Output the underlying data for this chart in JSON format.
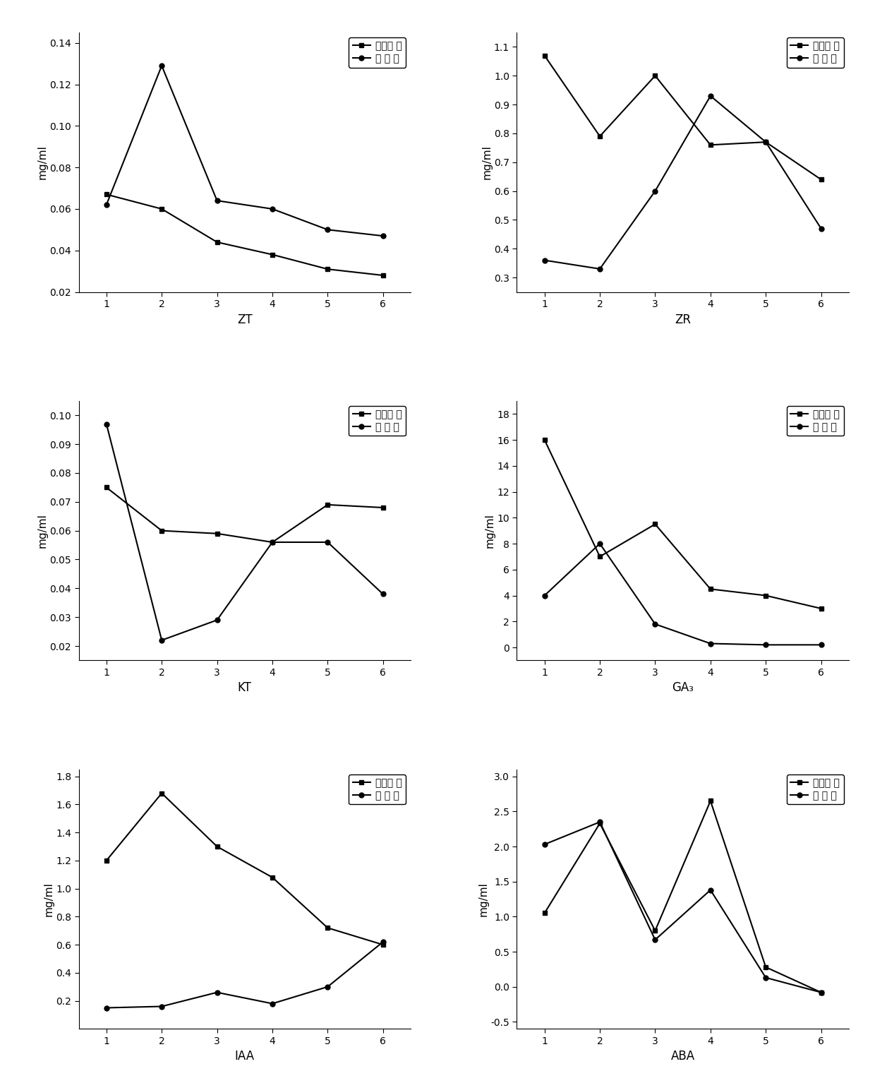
{
  "x": [
    1,
    2,
    3,
    4,
    5,
    6
  ],
  "ZT": {
    "shandong": [
      0.067,
      0.06,
      0.044,
      0.038,
      0.031,
      0.028
    ],
    "chuan": [
      0.062,
      0.129,
      0.064,
      0.06,
      0.05,
      0.047
    ],
    "ylabel": "mg/ml",
    "xlabel": "ZT",
    "ylim": [
      0.02,
      0.145
    ],
    "yticks": [
      0.02,
      0.04,
      0.06,
      0.08,
      0.1,
      0.12,
      0.14
    ]
  },
  "ZR": {
    "shandong": [
      1.07,
      0.79,
      1.0,
      0.76,
      0.77,
      0.64
    ],
    "chuan": [
      0.36,
      0.33,
      0.6,
      0.93,
      0.77,
      0.47
    ],
    "ylabel": "mg/ml",
    "xlabel": "ZR",
    "ylim": [
      0.25,
      1.15
    ],
    "yticks": [
      0.3,
      0.4,
      0.5,
      0.6,
      0.7,
      0.8,
      0.9,
      1.0,
      1.1
    ]
  },
  "KT": {
    "shandong": [
      0.075,
      0.06,
      0.059,
      0.056,
      0.069,
      0.068
    ],
    "chuan": [
      0.097,
      0.022,
      0.029,
      0.056,
      0.056,
      0.038
    ],
    "ylabel": "mg/ml",
    "xlabel": "KT",
    "ylim": [
      0.015,
      0.105
    ],
    "yticks": [
      0.02,
      0.03,
      0.04,
      0.05,
      0.06,
      0.07,
      0.08,
      0.09,
      0.1
    ]
  },
  "GA3": {
    "shandong": [
      16.0,
      7.0,
      9.5,
      4.5,
      4.0,
      3.0
    ],
    "chuan": [
      4.0,
      8.0,
      1.8,
      0.3,
      0.2,
      0.2
    ],
    "ylabel": "mg/ml",
    "xlabel": "GA₃",
    "ylim": [
      -1,
      19
    ],
    "yticks": [
      0,
      2,
      4,
      6,
      8,
      10,
      12,
      14,
      16,
      18
    ]
  },
  "IAA": {
    "shandong": [
      1.2,
      1.68,
      1.3,
      1.08,
      0.72,
      0.6
    ],
    "chuan": [
      0.15,
      0.16,
      0.26,
      0.18,
      0.3,
      0.62
    ],
    "ylabel": "mg/ml",
    "xlabel": "IAA",
    "ylim": [
      0,
      1.85
    ],
    "yticks": [
      0.2,
      0.4,
      0.6,
      0.8,
      1.0,
      1.2,
      1.4,
      1.6,
      1.8
    ]
  },
  "ABA": {
    "shandong": [
      1.05,
      2.33,
      0.8,
      2.65,
      0.28,
      -0.08
    ],
    "chuan": [
      2.03,
      2.35,
      0.67,
      1.38,
      0.13,
      -0.08
    ],
    "ylabel": "mg/ml",
    "xlabel": "ABA",
    "ylim": [
      -0.6,
      3.1
    ],
    "yticks": [
      -0.5,
      0.0,
      0.5,
      1.0,
      1.5,
      2.0,
      2.5,
      3.0
    ]
  },
  "legend_shandong": "山东丹 参",
  "legend_chuan": "川 丹 参",
  "color": "#000000",
  "linewidth": 1.5,
  "markersize": 5
}
